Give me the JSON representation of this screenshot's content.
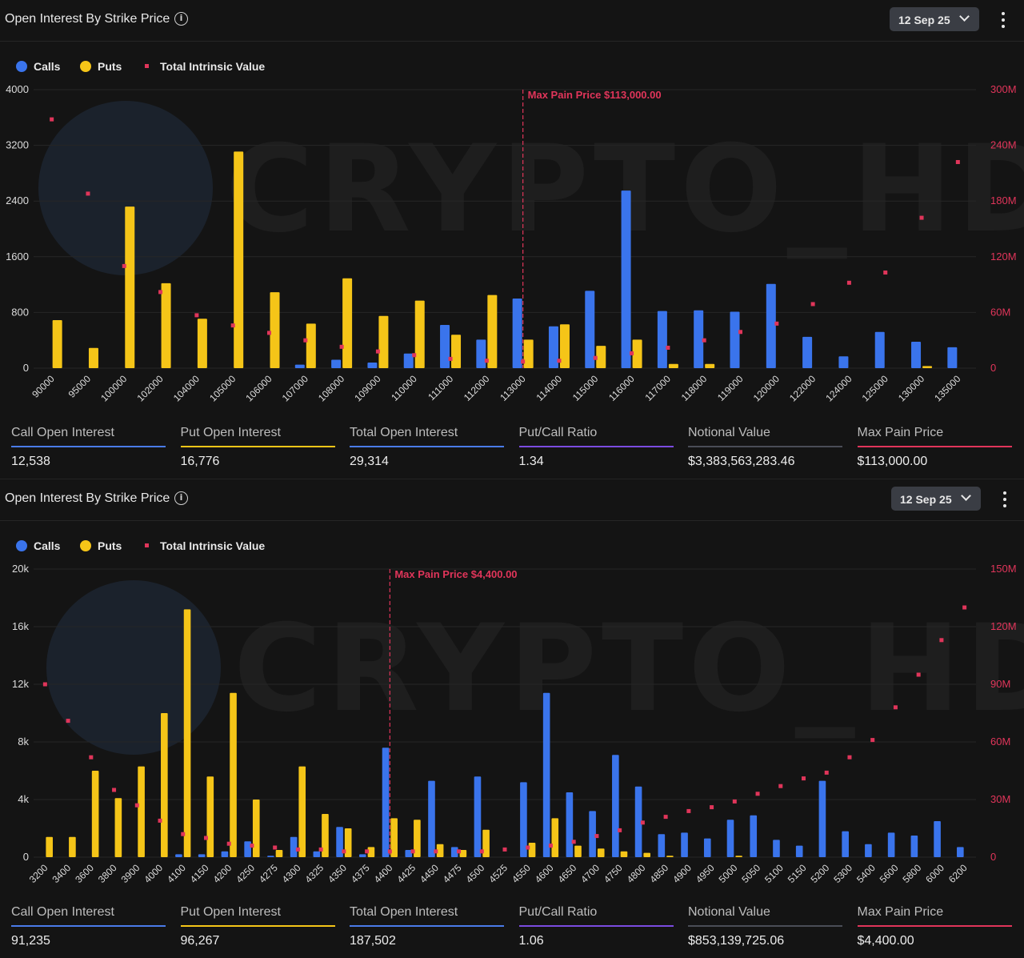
{
  "colors": {
    "calls": "#3a74ec",
    "puts": "#f5c518",
    "intrinsic": "#e0355a",
    "grid": "#262626",
    "axis_text": "#dcdcdc",
    "stat_call": "#4a7be8",
    "stat_put": "#f5c518",
    "stat_total": "#4a7be8",
    "stat_ratio": "#7b4ce0",
    "stat_notional": "#4a4d57",
    "stat_maxpain": "#e0355a"
  },
  "panels": [
    {
      "header": {
        "title": "Open Interest By Strike Price",
        "date": "12 Sep 25"
      },
      "legend": {
        "calls": "Calls",
        "puts": "Puts",
        "intrinsic": "Total Intrinsic Value"
      },
      "watermark": "CRYPTO_HD",
      "stats": [
        {
          "label": "Call Open Interest",
          "value": "12,538"
        },
        {
          "label": "Put Open Interest",
          "value": "16,776"
        },
        {
          "label": "Total Open Interest",
          "value": "29,314"
        },
        {
          "label": "Put/Call Ratio",
          "value": "1.34"
        },
        {
          "label": "Notional Value",
          "value": "$3,383,563,283.46"
        },
        {
          "label": "Max Pain Price",
          "value": "$113,000.00"
        }
      ]
    },
    {
      "header": {
        "title": "Open Interest By Strike Price",
        "date": "12 Sep 25"
      },
      "legend": {
        "calls": "Calls",
        "puts": "Puts",
        "intrinsic": "Total Intrinsic Value"
      },
      "watermark": "CRYPTO_HD",
      "stats": [
        {
          "label": "Call Open Interest",
          "value": "91,235"
        },
        {
          "label": "Put Open Interest",
          "value": "96,267"
        },
        {
          "label": "Total Open Interest",
          "value": "187,502"
        },
        {
          "label": "Put/Call Ratio",
          "value": "1.06"
        },
        {
          "label": "Notional Value",
          "value": "$853,139,725.06"
        },
        {
          "label": "Max Pain Price",
          "value": "$4,400.00"
        }
      ]
    }
  ],
  "chart_data": [
    {
      "type": "bar",
      "categories": [
        "90000",
        "95000",
        "100000",
        "102000",
        "104000",
        "105000",
        "106000",
        "107000",
        "108000",
        "109000",
        "110000",
        "111000",
        "112000",
        "113000",
        "114000",
        "115000",
        "116000",
        "117000",
        "118000",
        "119000",
        "120000",
        "122000",
        "124000",
        "125000",
        "130000",
        "135000"
      ],
      "series": [
        {
          "name": "Calls",
          "axis": "left",
          "values": [
            0,
            0,
            0,
            0,
            0,
            0,
            0,
            50,
            120,
            80,
            210,
            620,
            410,
            1000,
            600,
            1110,
            2550,
            820,
            830,
            810,
            1210,
            450,
            170,
            520,
            380,
            300
          ]
        },
        {
          "name": "Puts",
          "axis": "left",
          "values": [
            690,
            290,
            2320,
            1220,
            710,
            3110,
            1090,
            640,
            1290,
            750,
            970,
            480,
            1050,
            410,
            630,
            320,
            410,
            60,
            60,
            0,
            0,
            0,
            0,
            0,
            30,
            0
          ]
        },
        {
          "name": "Total Intrinsic Value",
          "type": "scatter",
          "axis": "right",
          "values": [
            268,
            188,
            110,
            82,
            57,
            46,
            38,
            30,
            23,
            18,
            14,
            10,
            8,
            7,
            8,
            11,
            16,
            22,
            30,
            39,
            48,
            69,
            92,
            103,
            162,
            222
          ]
        }
      ],
      "ylim_left": [
        0,
        4000
      ],
      "yticks_left": [
        "0",
        "800",
        "1600",
        "2400",
        "3200",
        "4000"
      ],
      "ylim_right": [
        0,
        300
      ],
      "yticks_right": [
        "0",
        "60M",
        "120M",
        "180M",
        "240M",
        "300M"
      ],
      "max_pain": {
        "category": "113000",
        "label": "Max Pain Price $113,000.00"
      },
      "grid": true,
      "legend": "top-left"
    },
    {
      "type": "bar",
      "categories": [
        "3200",
        "3400",
        "3600",
        "3800",
        "3900",
        "4000",
        "4100",
        "4150",
        "4200",
        "4250",
        "4275",
        "4300",
        "4325",
        "4350",
        "4375",
        "4400",
        "4425",
        "4450",
        "4475",
        "4500",
        "4525",
        "4550",
        "4600",
        "4650",
        "4700",
        "4750",
        "4800",
        "4850",
        "4900",
        "4950",
        "5000",
        "5050",
        "5100",
        "5150",
        "5200",
        "5300",
        "5400",
        "5600",
        "5800",
        "6000",
        "6200"
      ],
      "series": [
        {
          "name": "Calls",
          "axis": "left",
          "values": [
            0,
            0,
            0,
            0,
            0,
            0,
            200,
            200,
            400,
            1100,
            100,
            1400,
            400,
            2100,
            200,
            7600,
            500,
            5300,
            700,
            5600,
            0,
            5200,
            11400,
            4500,
            3200,
            7100,
            4900,
            1600,
            1700,
            1300,
            2600,
            2900,
            1200,
            800,
            5300,
            1800,
            900,
            1700,
            1500,
            2500,
            700
          ]
        },
        {
          "name": "Puts",
          "axis": "left",
          "values": [
            1400,
            1400,
            6000,
            4100,
            6300,
            10000,
            17200,
            5600,
            11400,
            4000,
            500,
            6300,
            3000,
            2000,
            700,
            2700,
            2600,
            900,
            500,
            1900,
            0,
            1000,
            2700,
            800,
            600,
            400,
            300,
            100,
            0,
            0,
            100,
            0,
            0,
            0,
            0,
            0,
            0,
            0,
            0,
            0,
            0
          ]
        },
        {
          "name": "Total Intrinsic Value",
          "type": "scatter",
          "axis": "right",
          "values": [
            90,
            71,
            52,
            35,
            27,
            19,
            12,
            10,
            7,
            6,
            5,
            4,
            4,
            3,
            3,
            3,
            3,
            3,
            3,
            3,
            4,
            5,
            6,
            8,
            11,
            14,
            18,
            21,
            24,
            26,
            29,
            33,
            37,
            41,
            44,
            52,
            61,
            78,
            95,
            113,
            130
          ]
        }
      ],
      "ylim_left": [
        0,
        20000
      ],
      "yticks_left": [
        "0",
        "4k",
        "8k",
        "12k",
        "16k",
        "20k"
      ],
      "ylim_right": [
        0,
        150
      ],
      "yticks_right": [
        "0",
        "30M",
        "60M",
        "90M",
        "120M",
        "150M"
      ],
      "max_pain": {
        "category": "4400",
        "label": "Max Pain Price $4,400.00"
      },
      "grid": true,
      "legend": "top-left"
    }
  ]
}
